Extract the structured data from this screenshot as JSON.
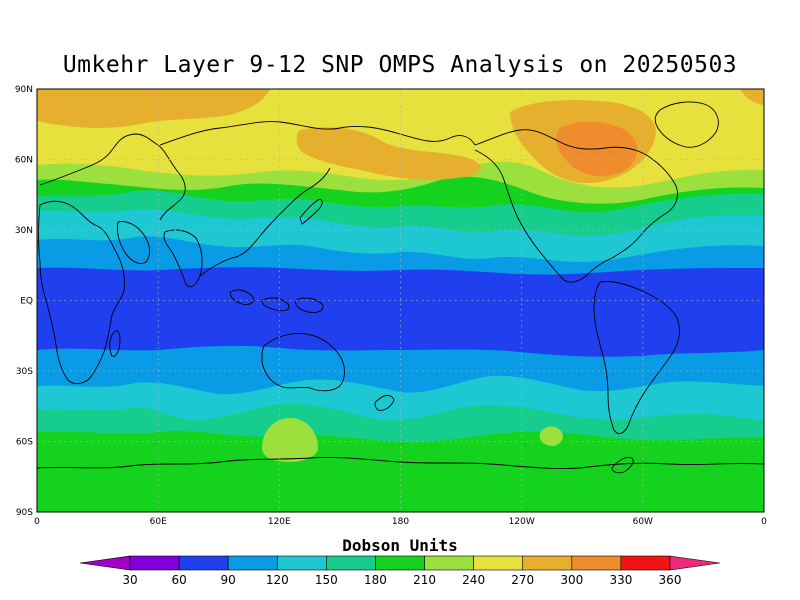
{
  "title": "Umkehr Layer 9-12 SNP OMPS Analysis on 20250503",
  "map": {
    "lat_ticks": [
      "90N",
      "60N",
      "30N",
      "EQ",
      "30S",
      "60S",
      "90S"
    ],
    "lon_ticks": [
      "0",
      "60E",
      "120E",
      "180",
      "120W",
      "60W",
      "0"
    ],
    "lat_values": [
      90,
      60,
      30,
      0,
      -30,
      -60,
      -90
    ],
    "lon_values": [
      0,
      60,
      120,
      180,
      240,
      300,
      360
    ],
    "band_colors": {
      "c60": "#2040f0",
      "c90": "#0a9be6",
      "c120": "#1ec8d2",
      "c150": "#17cd8d",
      "c180": "#14d21e",
      "c210": "#9be03c",
      "c240": "#e6e13c",
      "c270": "#e6af2d",
      "c300": "#ef8c2d"
    },
    "coastline_color": "#000000",
    "grid_color": "#b4b4b4"
  },
  "colorbar": {
    "title": "Dobson Units",
    "levels": [
      30,
      60,
      90,
      120,
      150,
      180,
      210,
      240,
      270,
      300,
      330,
      360
    ],
    "labels": [
      "30",
      "60",
      "90",
      "120",
      "150",
      "180",
      "210",
      "240",
      "270",
      "300",
      "330",
      "360"
    ],
    "colors": [
      "#a000c8",
      "#8200dc",
      "#2040f0",
      "#0a9be6",
      "#1ec8d2",
      "#17cd8d",
      "#14d21e",
      "#9be03c",
      "#e6e13c",
      "#e6af2d",
      "#ef8c2d",
      "#f01414",
      "#f0287d"
    ]
  }
}
